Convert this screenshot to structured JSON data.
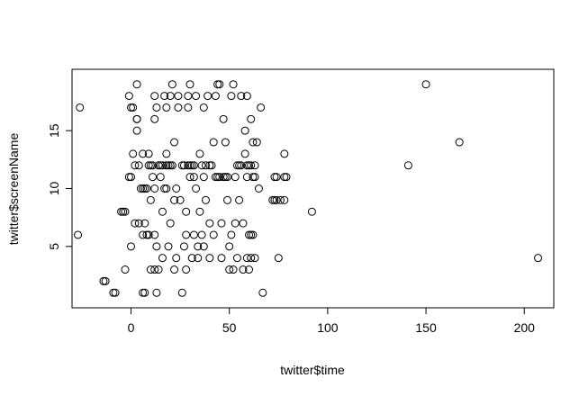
{
  "chart_data": {
    "type": "scatter",
    "title": "",
    "xlabel": "twitter$time",
    "ylabel": "twitter$screenName",
    "xlim": [
      -30,
      215
    ],
    "ylim": [
      -0.3,
      20.3
    ],
    "x_ticks": [
      0,
      50,
      100,
      150,
      200
    ],
    "y_ticks": [
      5,
      10,
      15
    ],
    "x_tick_labels": [
      "0",
      "50",
      "100",
      "150",
      "200"
    ],
    "y_tick_labels": [
      "5",
      "10",
      "15"
    ],
    "grid": false,
    "legend": "none",
    "marker": "open-circle",
    "color": "#000000",
    "points": [
      [
        -26,
        17
      ],
      [
        -27,
        6
      ],
      [
        -14,
        2
      ],
      [
        -13,
        2
      ],
      [
        -9,
        1
      ],
      [
        -8,
        1
      ],
      [
        -5,
        8
      ],
      [
        -4,
        8
      ],
      [
        -3,
        8
      ],
      [
        -3,
        3
      ],
      [
        -1,
        18
      ],
      [
        -1,
        11
      ],
      [
        0,
        17
      ],
      [
        1,
        17
      ],
      [
        0,
        11
      ],
      [
        0,
        5
      ],
      [
        1,
        13
      ],
      [
        2,
        12
      ],
      [
        2,
        7
      ],
      [
        3,
        16
      ],
      [
        3,
        15
      ],
      [
        3,
        16
      ],
      [
        3,
        19
      ],
      [
        4,
        12
      ],
      [
        4,
        7
      ],
      [
        5,
        10
      ],
      [
        6,
        10
      ],
      [
        6,
        1
      ],
      [
        6,
        6
      ],
      [
        6,
        13
      ],
      [
        7,
        1
      ],
      [
        7,
        10
      ],
      [
        7,
        7
      ],
      [
        8,
        6
      ],
      [
        8,
        10
      ],
      [
        9,
        6
      ],
      [
        9,
        12
      ],
      [
        9,
        13
      ],
      [
        10,
        12
      ],
      [
        10,
        9
      ],
      [
        10,
        3
      ],
      [
        11,
        12
      ],
      [
        11,
        11
      ],
      [
        12,
        16
      ],
      [
        12,
        10
      ],
      [
        12,
        6
      ],
      [
        12,
        18
      ],
      [
        12,
        3
      ],
      [
        13,
        17
      ],
      [
        13,
        1
      ],
      [
        13,
        5
      ],
      [
        14,
        12
      ],
      [
        14,
        3
      ],
      [
        15,
        11
      ],
      [
        15,
        12
      ],
      [
        16,
        12
      ],
      [
        16,
        8
      ],
      [
        16,
        4
      ],
      [
        17,
        10
      ],
      [
        17,
        18
      ],
      [
        18,
        13
      ],
      [
        18,
        10
      ],
      [
        18,
        17
      ],
      [
        18,
        12
      ],
      [
        19,
        12
      ],
      [
        19,
        5
      ],
      [
        20,
        12
      ],
      [
        20,
        7
      ],
      [
        20,
        18
      ],
      [
        21,
        19
      ],
      [
        21,
        12
      ],
      [
        22,
        14
      ],
      [
        22,
        9
      ],
      [
        22,
        3
      ],
      [
        23,
        10
      ],
      [
        23,
        4
      ],
      [
        24,
        18
      ],
      [
        24,
        17
      ],
      [
        25,
        9
      ],
      [
        26,
        1
      ],
      [
        26,
        12
      ],
      [
        27,
        12
      ],
      [
        27,
        5
      ],
      [
        28,
        8
      ],
      [
        28,
        3
      ],
      [
        28,
        6
      ],
      [
        29,
        18
      ],
      [
        29,
        12
      ],
      [
        29,
        17
      ],
      [
        30,
        12
      ],
      [
        30,
        11
      ],
      [
        30,
        19
      ],
      [
        31,
        4
      ],
      [
        31,
        12
      ],
      [
        32,
        12
      ],
      [
        32,
        11
      ],
      [
        32,
        6
      ],
      [
        33,
        10
      ],
      [
        33,
        18
      ],
      [
        34,
        4
      ],
      [
        34,
        5
      ],
      [
        35,
        13
      ],
      [
        35,
        8
      ],
      [
        36,
        12
      ],
      [
        36,
        6
      ],
      [
        37,
        11
      ],
      [
        37,
        5
      ],
      [
        37,
        17
      ],
      [
        38,
        9
      ],
      [
        38,
        12
      ],
      [
        39,
        18
      ],
      [
        40,
        7
      ],
      [
        40,
        4
      ],
      [
        40,
        12
      ],
      [
        41,
        12
      ],
      [
        42,
        6
      ],
      [
        42,
        14
      ],
      [
        43,
        11
      ],
      [
        43,
        18
      ],
      [
        44,
        11
      ],
      [
        44,
        19
      ],
      [
        45,
        19
      ],
      [
        45,
        11
      ],
      [
        46,
        4
      ],
      [
        46,
        7
      ],
      [
        47,
        11
      ],
      [
        47,
        16
      ],
      [
        48,
        11
      ],
      [
        48,
        14
      ],
      [
        49,
        11
      ],
      [
        49,
        9
      ],
      [
        50,
        3
      ],
      [
        50,
        5
      ],
      [
        51,
        18
      ],
      [
        51,
        6
      ],
      [
        52,
        19
      ],
      [
        52,
        3
      ],
      [
        53,
        11
      ],
      [
        53,
        7
      ],
      [
        54,
        12
      ],
      [
        54,
        4
      ],
      [
        55,
        12
      ],
      [
        55,
        9
      ],
      [
        56,
        18
      ],
      [
        56,
        12
      ],
      [
        57,
        3
      ],
      [
        57,
        7
      ],
      [
        58,
        15
      ],
      [
        58,
        13
      ],
      [
        59,
        11
      ],
      [
        59,
        12
      ],
      [
        59,
        4
      ],
      [
        59,
        18
      ],
      [
        60,
        12
      ],
      [
        60,
        6
      ],
      [
        60,
        3
      ],
      [
        61,
        16
      ],
      [
        61,
        12
      ],
      [
        61,
        4
      ],
      [
        61,
        6
      ],
      [
        62,
        14
      ],
      [
        62,
        11
      ],
      [
        62,
        6
      ],
      [
        63,
        11
      ],
      [
        63,
        12
      ],
      [
        63,
        4
      ],
      [
        64,
        14
      ],
      [
        65,
        10
      ],
      [
        66,
        17
      ],
      [
        67,
        1
      ],
      [
        72,
        9
      ],
      [
        73,
        9
      ],
      [
        73,
        11
      ],
      [
        74,
        11
      ],
      [
        74,
        9
      ],
      [
        75,
        4
      ],
      [
        76,
        9
      ],
      [
        78,
        9
      ],
      [
        78,
        11
      ],
      [
        78,
        13
      ],
      [
        79,
        11
      ],
      [
        92,
        8
      ],
      [
        141,
        12
      ],
      [
        150,
        19
      ],
      [
        167,
        14
      ],
      [
        207,
        4
      ]
    ]
  }
}
